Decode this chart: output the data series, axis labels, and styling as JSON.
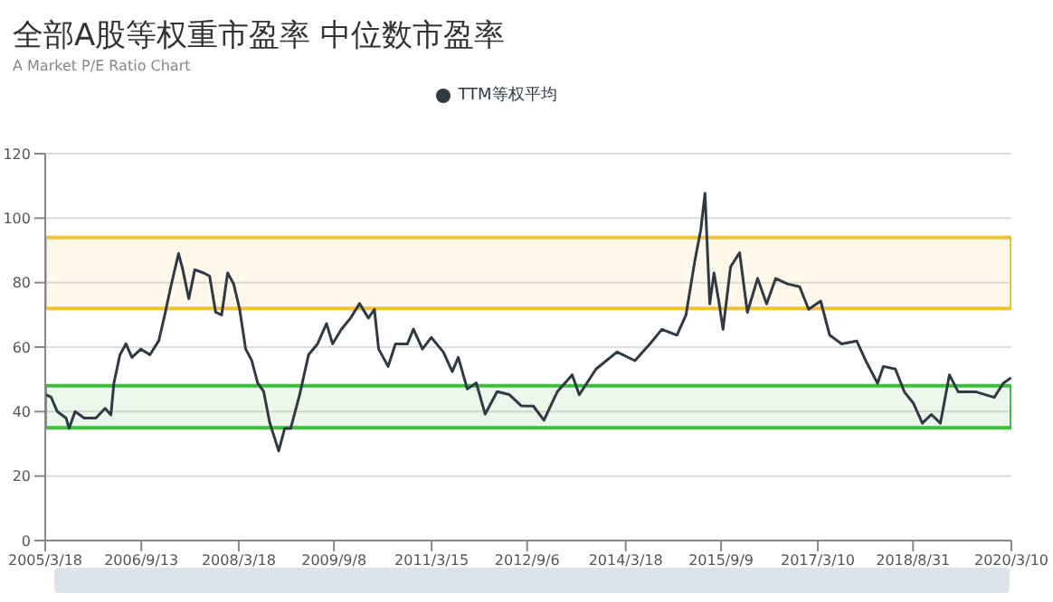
{
  "chart_data": {
    "type": "line",
    "title": "全部A股等权重市盈率 中位数市盈率",
    "subtitle": "A Market P/E Ratio Chart",
    "x": [
      "2005-03-18",
      "2005-04-20",
      "2005-05-25",
      "2005-07-14",
      "2005-07-31",
      "2005-09-03",
      "2005-10-24",
      "2005-12-30",
      "2006-02-20",
      "2006-03-25",
      "2006-04-11",
      "2006-05-15",
      "2006-06-18",
      "2006-07-22",
      "2006-09-11",
      "2006-11-01",
      "2006-12-21",
      "2007-01-24",
      "2007-02-27",
      "2007-04-12",
      "2007-05-06",
      "2007-06-09",
      "2007-07-13",
      "2007-09-02",
      "2007-10-05",
      "2007-11-08",
      "2007-12-12",
      "2008-01-15",
      "2008-02-18",
      "2008-03-23",
      "2008-04-26",
      "2008-05-30",
      "2008-07-03",
      "2008-08-06",
      "2008-09-09",
      "2008-10-30",
      "2008-12-03",
      "2009-01-06",
      "2009-02-26",
      "2009-04-17",
      "2009-06-07",
      "2009-07-28",
      "2009-08-31",
      "2009-10-21",
      "2009-12-11",
      "2010-01-31",
      "2010-03-22",
      "2010-04-25",
      "2010-05-19",
      "2010-07-12",
      "2010-08-22",
      "2010-10-29",
      "2010-12-02",
      "2011-01-22",
      "2011-03-13",
      "2011-05-20",
      "2011-07-10",
      "2011-08-13",
      "2011-10-03",
      "2011-11-23",
      "2012-01-12",
      "2012-03-20",
      "2012-05-27",
      "2012-08-03",
      "2012-10-11",
      "2012-12-10",
      "2013-02-23",
      "2013-05-19",
      "2013-06-28",
      "2013-10-01",
      "2014-01-28",
      "2014-05-09",
      "2014-08-02",
      "2014-10-09",
      "2015-01-02",
      "2015-02-22",
      "2015-04-13",
      "2015-05-17",
      "2015-06-10",
      "2015-07-07",
      "2015-07-31",
      "2015-08-27",
      "2015-09-20",
      "2015-11-02",
      "2015-12-23",
      "2016-02-05",
      "2016-04-03",
      "2016-05-24",
      "2016-07-14",
      "2016-09-20",
      "2016-11-27",
      "2017-01-17",
      "2017-03-26",
      "2017-05-16",
      "2017-07-23",
      "2017-10-16",
      "2017-12-06",
      "2018-02-11",
      "2018-03-16",
      "2018-05-23",
      "2018-07-13",
      "2018-09-02",
      "2018-10-23",
      "2018-12-13",
      "2019-02-02",
      "2019-03-25",
      "2019-05-14",
      "2019-08-24",
      "2019-12-04",
      "2020-01-24",
      "2020-03-08"
    ],
    "series": [
      {
        "name": "TTM等权平均",
        "color": "#2f3a45",
        "values": [
          45.3,
          44.5,
          40,
          38,
          34.8,
          40,
          38,
          38,
          41,
          39,
          48.9,
          57.6,
          61,
          56.8,
          59.4,
          57.6,
          62,
          70,
          78.7,
          89,
          84,
          75,
          84,
          83,
          82,
          70.8,
          70,
          83,
          79.6,
          71.7,
          59.4,
          55.9,
          48.9,
          46.2,
          36.6,
          27.8,
          34.8,
          34.8,
          45.3,
          57.6,
          61,
          67.3,
          61,
          65.6,
          69,
          73.5,
          69,
          71.7,
          59.4,
          54,
          61,
          61,
          65.6,
          59.4,
          63,
          58.5,
          52.4,
          56.8,
          47,
          48.9,
          39.2,
          46.2,
          45.3,
          41.8,
          41.7,
          37.3,
          46.1,
          51.4,
          45.2,
          53.2,
          58.5,
          55.8,
          61,
          65.5,
          63.7,
          69.9,
          86.6,
          96.3,
          107.7,
          73.4,
          83,
          74.3,
          65.5,
          84.9,
          89.3,
          70.8,
          81.3,
          73.4,
          81.3,
          79.6,
          78.7,
          71.7,
          74.3,
          63.7,
          61,
          61.9,
          55.8,
          48.8,
          54,
          53.2,
          46.1,
          42.6,
          36.4,
          39.1,
          36.4,
          51.4,
          46.1,
          46.1,
          44.4,
          48.8,
          50.5
        ]
      }
    ],
    "xlim": [
      "2005-03-18",
      "2020-03-10"
    ],
    "xticks": [
      {
        "value": "2005-03-18",
        "label": "2005/3/18"
      },
      {
        "value": "2006-09-13",
        "label": "2006/9/13"
      },
      {
        "value": "2008-03-18",
        "label": "2008/3/18"
      },
      {
        "value": "2009-09-08",
        "label": "2009/9/8"
      },
      {
        "value": "2011-03-15",
        "label": "2011/3/15"
      },
      {
        "value": "2012-09-06",
        "label": "2012/9/6"
      },
      {
        "value": "2014-03-18",
        "label": "2014/3/18"
      },
      {
        "value": "2015-09-09",
        "label": "2015/9/9"
      },
      {
        "value": "2017-03-10",
        "label": "2017/3/10"
      },
      {
        "value": "2018-08-31",
        "label": "2018/8/31"
      },
      {
        "value": "2020-03-10",
        "label": "2020/3/10"
      }
    ],
    "ylim": [
      0,
      120
    ],
    "yticks": [
      0,
      20,
      40,
      60,
      80,
      100,
      120
    ],
    "bands": [
      {
        "axis": "y",
        "from": 72,
        "to": 94,
        "color": "#f2c230"
      },
      {
        "axis": "y",
        "from": 35,
        "to": 48,
        "color": "#3cbf3c"
      }
    ],
    "grid": "y",
    "legend": "top",
    "marker": "none",
    "line_style": "solid"
  }
}
